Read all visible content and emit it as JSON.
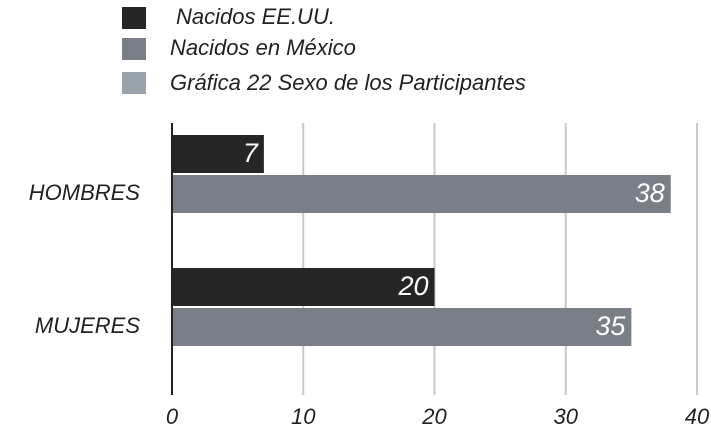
{
  "chart_data": {
    "type": "hbar",
    "title": "Gráfica 22 Sexo de los Participantes",
    "categories": [
      "HOMBRES",
      "MUJERES"
    ],
    "series": [
      {
        "name": "Nacidos EE.UU.",
        "color": "#262626",
        "values": [
          7,
          20
        ]
      },
      {
        "name": "Nacidos en México",
        "color": "#7a7f87",
        "values": [
          38,
          35
        ]
      }
    ],
    "xlim": [
      0,
      40
    ],
    "xticks": [
      0,
      10,
      20,
      30,
      40
    ],
    "grid": true
  }
}
